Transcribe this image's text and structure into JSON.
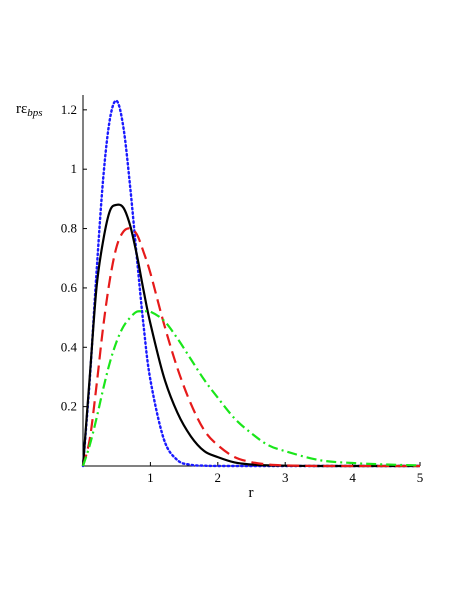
{
  "chart_data": {
    "type": "line",
    "title": "",
    "xlabel": "r",
    "ylabel": {
      "main": "rε",
      "subscript": "bps"
    },
    "xlim": [
      0,
      5
    ],
    "ylim": [
      0,
      1.25
    ],
    "x_ticks": [
      1,
      2,
      3,
      4,
      5
    ],
    "y_ticks": [
      0.2,
      0.4,
      0.6,
      0.8,
      1,
      1.2
    ],
    "grid": false,
    "legend": "none",
    "x": [
      0,
      0.1,
      0.2,
      0.3,
      0.4,
      0.5,
      0.6,
      0.7,
      0.8,
      0.9,
      1.0,
      1.2,
      1.4,
      1.6,
      1.8,
      2.0,
      2.25,
      2.5,
      2.75,
      3.0,
      3.5,
      4.0,
      4.5,
      5.0
    ],
    "series": [
      {
        "style": "dotted",
        "color": "#1a1aff",
        "values": [
          0,
          0.29,
          0.65,
          0.97,
          1.17,
          1.23,
          1.14,
          0.94,
          0.7,
          0.47,
          0.29,
          0.09,
          0.02,
          0.004,
          0.001,
          0,
          0,
          0,
          0,
          0,
          0,
          0,
          0,
          0
        ]
      },
      {
        "style": "solid",
        "color": "#000000",
        "values": [
          0,
          0.3,
          0.6,
          0.76,
          0.86,
          0.88,
          0.87,
          0.81,
          0.71,
          0.59,
          0.48,
          0.3,
          0.18,
          0.1,
          0.05,
          0.03,
          0.012,
          0.005,
          0.002,
          0.001,
          0,
          0,
          0,
          0
        ]
      },
      {
        "style": "dashed",
        "color": "#e61a1a",
        "values": [
          0,
          0.09,
          0.27,
          0.47,
          0.63,
          0.74,
          0.79,
          0.8,
          0.78,
          0.72,
          0.65,
          0.48,
          0.33,
          0.21,
          0.12,
          0.07,
          0.03,
          0.013,
          0.005,
          0.002,
          0,
          0,
          0,
          0
        ]
      },
      {
        "style": "dashdot",
        "color": "#1ae61a",
        "values": [
          0,
          0.07,
          0.16,
          0.26,
          0.35,
          0.42,
          0.47,
          0.5,
          0.52,
          0.52,
          0.52,
          0.49,
          0.43,
          0.36,
          0.29,
          0.23,
          0.16,
          0.11,
          0.07,
          0.05,
          0.02,
          0.01,
          0.005,
          0.002
        ]
      }
    ]
  }
}
